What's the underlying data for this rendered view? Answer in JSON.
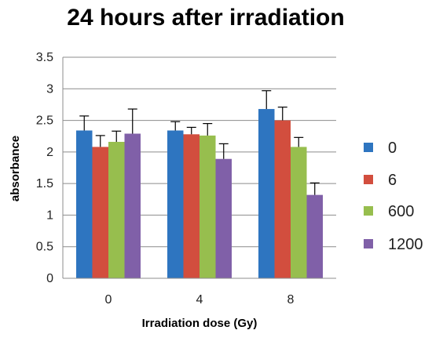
{
  "chart_data": {
    "type": "bar",
    "title": "24 hours after irradiation",
    "xlabel": "Irradiation dose (Gy)",
    "ylabel": "absorbance",
    "categories": [
      "0",
      "4",
      "8"
    ],
    "ylim": [
      0,
      3.5
    ],
    "yticks": [
      "0",
      "0.5",
      "1",
      "1.5",
      "2",
      "2.5",
      "3",
      "3.5"
    ],
    "grid": true,
    "legend_position": "right",
    "series": [
      {
        "name": "0",
        "color": "#2E75C0",
        "values": [
          2.34,
          2.34,
          2.68
        ],
        "errors": [
          0.23,
          0.14,
          0.29
        ]
      },
      {
        "name": "6",
        "color": "#D24E3E",
        "values": [
          2.08,
          2.28,
          2.5
        ],
        "errors": [
          0.18,
          0.11,
          0.21
        ]
      },
      {
        "name": "600",
        "color": "#97BE4E",
        "values": [
          2.16,
          2.26,
          2.08
        ],
        "errors": [
          0.17,
          0.19,
          0.15
        ]
      },
      {
        "name": "1200",
        "color": "#8060A8",
        "values": [
          2.29,
          1.89,
          1.32
        ],
        "errors": [
          0.39,
          0.24,
          0.19
        ]
      }
    ]
  }
}
